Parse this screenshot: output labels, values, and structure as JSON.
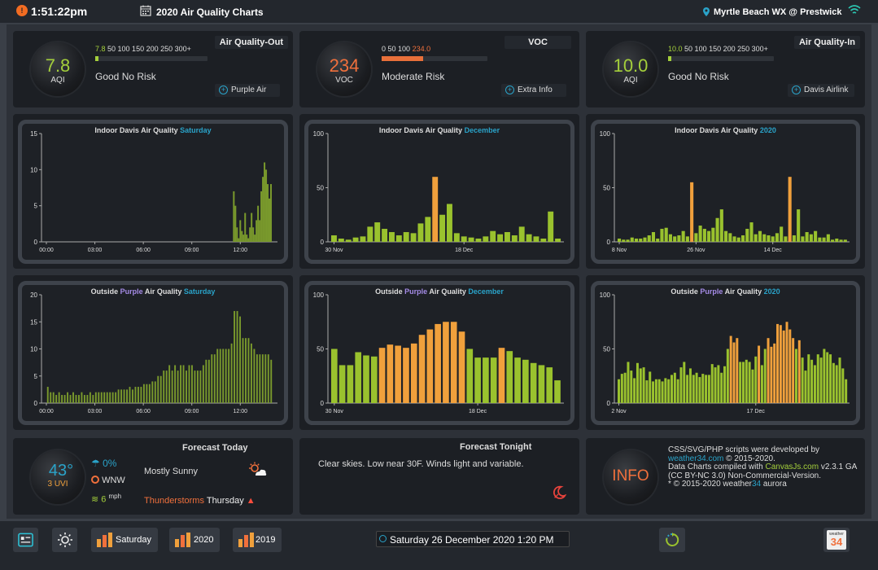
{
  "header": {
    "time": "1:51:22pm",
    "title": "2020 Air Quality Charts",
    "location": "Myrtle Beach WX @ Prestwick"
  },
  "panels": {
    "aq_out": {
      "title": "Air Quality-Out",
      "value": "7.8",
      "unit": "AQI",
      "scale_current": "7.8",
      "scale": "50 100 150 200 250 300+",
      "risk": "Good No Risk",
      "link": "Purple Air",
      "accent": "#a4cf3b",
      "level_fraction": 0.026
    },
    "voc": {
      "title": "VOC",
      "value": "234",
      "unit": "VOC",
      "scale": "0 50 100",
      "scale_current": "234.0",
      "risk": "Moderate Risk",
      "link": "Extra Info",
      "accent": "#f0703c",
      "level_fraction": 0.39
    },
    "aq_in": {
      "title": "Air Quality-In",
      "value": "10.0",
      "unit": "AQI",
      "scale_current": "10.0",
      "scale": "50 100 150 200 250 300+",
      "risk": "Good No Risk",
      "link": "Davis Airlink",
      "accent": "#a4cf3b",
      "level_fraction": 0.033
    }
  },
  "chart_data": [
    {
      "type": "bar",
      "title_prefix": "Indoor Davis Air Quality",
      "title_suffix": "Saturday",
      "ylim": [
        0,
        15
      ],
      "yticks": [
        0,
        5,
        10,
        15
      ],
      "xticks": [
        "00:00",
        "03:00",
        "06:00",
        "09:00",
        "12:00"
      ],
      "x_range": [
        0,
        14
      ],
      "x": [
        11.6,
        11.7,
        11.8,
        11.9,
        12.0,
        12.1,
        12.2,
        12.3,
        12.4,
        12.5,
        12.6,
        12.7,
        12.8,
        12.9,
        13.0,
        13.1,
        13.2,
        13.3,
        13.4,
        13.5,
        13.6,
        13.7,
        13.8,
        13.9
      ],
      "values": [
        7,
        5,
        2,
        0.5,
        3,
        1.5,
        1,
        4,
        1,
        0.5,
        2,
        4,
        2,
        1,
        3,
        5,
        3,
        7,
        9,
        11,
        10,
        8,
        6,
        8
      ]
    },
    {
      "type": "bar",
      "title_prefix": "Indoor Davis Air Quality",
      "title_suffix": "December",
      "ylim": [
        0,
        100
      ],
      "yticks": [
        0,
        50,
        100
      ],
      "categories_labels": [
        "30 Nov",
        "18 Dec"
      ],
      "label_index": [
        0,
        18
      ],
      "values": [
        6,
        3,
        2,
        4,
        5,
        14,
        18,
        12,
        9,
        6,
        9,
        8,
        17,
        23,
        60,
        25,
        35,
        8,
        5,
        4,
        3,
        5,
        10,
        7,
        9,
        6,
        14,
        7,
        5,
        3,
        28,
        3
      ],
      "highlight": [
        14
      ]
    },
    {
      "type": "bar",
      "title_prefix": "Indoor Davis Air Quality",
      "title_suffix": "2020",
      "ylim": [
        0,
        100
      ],
      "yticks": [
        0,
        50,
        100
      ],
      "categories_labels": [
        "8 Nov",
        "26 Nov",
        "14 Dec"
      ],
      "label_index": [
        0,
        18,
        36
      ],
      "values": [
        3,
        2,
        2,
        4,
        3,
        3,
        4,
        6,
        9,
        3,
        12,
        13,
        7,
        5,
        6,
        10,
        5,
        55,
        8,
        15,
        12,
        10,
        13,
        22,
        30,
        10,
        8,
        5,
        4,
        6,
        12,
        18,
        7,
        10,
        7,
        6,
        5,
        8,
        14,
        5,
        60,
        6,
        30,
        5,
        9,
        7,
        10,
        4,
        4,
        7,
        2,
        3,
        2,
        2
      ],
      "highlight": [
        17,
        40
      ]
    },
    {
      "type": "bar",
      "title_prefix": "Outside",
      "title_mid": "Purple",
      "title_mid2": "Air Quality",
      "title_suffix": "Saturday",
      "ylim": [
        0,
        20
      ],
      "yticks": [
        0,
        5,
        10,
        15,
        20
      ],
      "xticks": [
        "00:00",
        "03:00",
        "06:00",
        "09:00",
        "12:00"
      ],
      "x_range": [
        0,
        14
      ],
      "values": [
        3,
        2,
        2,
        1.5,
        2,
        1.5,
        1.5,
        2,
        1.5,
        2,
        1.5,
        1.5,
        2,
        1.5,
        1.5,
        2,
        1.5,
        2,
        2,
        2,
        2,
        2,
        2,
        2,
        2,
        2.5,
        2.5,
        2.5,
        2.5,
        3,
        2.5,
        3,
        3,
        3,
        3.5,
        3.5,
        3.5,
        4,
        4,
        5,
        5,
        6,
        6,
        7,
        6,
        7,
        6,
        7,
        7,
        6,
        7,
        7,
        6,
        6,
        6,
        7,
        8,
        8,
        9,
        9,
        10,
        10,
        10,
        10,
        10,
        11,
        17,
        17,
        16,
        12,
        12,
        12,
        11,
        10,
        9,
        9,
        9,
        9,
        9,
        8
      ],
      "bar_color": "#7a9a2c"
    },
    {
      "type": "bar",
      "title_prefix": "Outside",
      "title_mid": "Purple",
      "title_mid2": "Air Quality",
      "title_suffix": "December",
      "ylim": [
        0,
        100
      ],
      "yticks": [
        0,
        50,
        100
      ],
      "categories_labels": [
        "30 Nov",
        "18 Dec"
      ],
      "label_index": [
        0,
        18
      ],
      "values": [
        50,
        35,
        35,
        47,
        44,
        43,
        51,
        54,
        53,
        51,
        55,
        63,
        68,
        73,
        75,
        75,
        66,
        50,
        42,
        42,
        42,
        51,
        48,
        42,
        40,
        37,
        35,
        33,
        21
      ],
      "orange_threshold": 50
    },
    {
      "type": "bar",
      "title_prefix": "Outside",
      "title_mid": "Purple",
      "title_mid2": "Air Quality",
      "title_suffix": "2020",
      "ylim": [
        0,
        100
      ],
      "yticks": [
        0,
        50,
        100
      ],
      "categories_labels": [
        "2 Nov",
        "17 Dec"
      ],
      "label_index": [
        0,
        44
      ],
      "values": [
        22,
        27,
        28,
        38,
        30,
        23,
        37,
        32,
        33,
        21,
        29,
        20,
        22,
        22,
        20,
        23,
        22,
        26,
        28,
        22,
        33,
        38,
        26,
        32,
        26,
        28,
        24,
        27,
        26,
        26,
        36,
        33,
        35,
        28,
        34,
        50,
        62,
        56,
        60,
        38,
        38,
        40,
        38,
        31,
        43,
        53,
        35,
        50,
        60,
        52,
        55,
        73,
        72,
        67,
        75,
        68,
        60,
        50,
        58,
        42,
        30,
        45,
        40,
        35,
        45,
        42,
        50,
        47,
        45,
        37,
        35,
        42,
        32,
        22
      ],
      "orange_threshold": 50
    }
  ],
  "forecast_today": {
    "title": "Forecast Today",
    "temp": "43°",
    "uvi": "3 UVI",
    "rain": "0%",
    "wind_dir": "WNW",
    "wind_speed": "6",
    "wind_unit": "mph",
    "summary": "Mostly Sunny",
    "alert_text": "Thunderstorms",
    "alert_day": "Thursday"
  },
  "forecast_tonight": {
    "title": "Forecast Tonight",
    "text": "Clear skies. Low near 30F. Winds light and variable."
  },
  "info": {
    "badge": "INFO",
    "line1": "CSS/SVG/PHP scripts were developed by",
    "link1": "weather34.com",
    "line1b": " © 2015-2020.",
    "line2": "Data Charts compiled with ",
    "link2": "CanvasJs.com",
    "line3": " v2.3.1 GA (CC BY-NC 3.0) Non-Commercial-Version.",
    "line4a": "* © 2015-2020 weather",
    "line4b": "34",
    "line4c": " aurora"
  },
  "footer": {
    "btn_saturday": "Saturday",
    "btn_2020": "2020",
    "btn_2019": "2019",
    "datetime": "Saturday 26 December 2020 1:20 PM",
    "logo_top": "weather",
    "logo_num": "34"
  },
  "colors": {
    "green": "#9ac22e",
    "orange": "#f0a03c",
    "teal": "#2aa3c9",
    "purple": "#a48be6",
    "red": "#f0703c"
  }
}
